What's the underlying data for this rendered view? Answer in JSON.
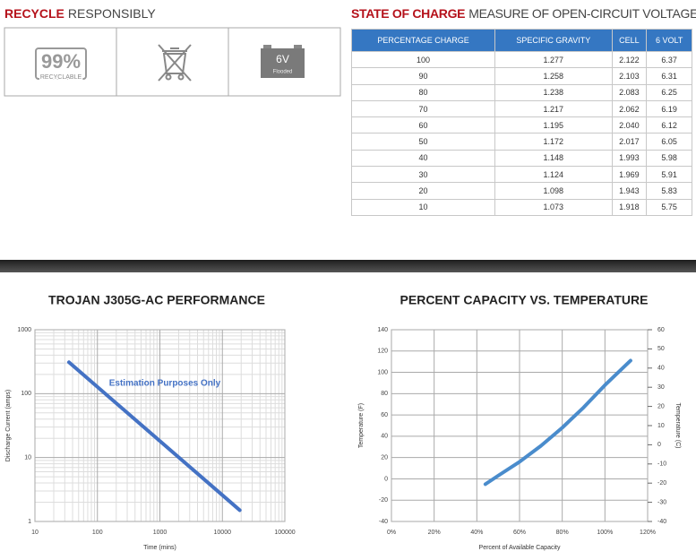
{
  "recycle": {
    "title_bold": "RECYCLE",
    "title_rest": "RESPONSIBLY",
    "badge_value": "99%",
    "badge_label": "RECYCLABLE",
    "battery_voltage": "6V",
    "battery_type": "Flooded"
  },
  "state_of_charge": {
    "title_bold": "STATE OF CHARGE",
    "title_rest": "MEASURE OF OPEN-CIRCUIT VOLTAGE",
    "header": [
      "PERCENTAGE CHARGE",
      "SPECIFIC GRAVITY",
      "CELL",
      "6 VOLT"
    ],
    "rows": [
      [
        "100",
        "1.277",
        "2.122",
        "6.37"
      ],
      [
        "90",
        "1.258",
        "2.103",
        "6.31"
      ],
      [
        "80",
        "1.238",
        "2.083",
        "6.25"
      ],
      [
        "70",
        "1.217",
        "2.062",
        "6.19"
      ],
      [
        "60",
        "1.195",
        "2.040",
        "6.12"
      ],
      [
        "50",
        "1.172",
        "2.017",
        "6.05"
      ],
      [
        "40",
        "1.148",
        "1.993",
        "5.98"
      ],
      [
        "30",
        "1.124",
        "1.969",
        "5.91"
      ],
      [
        "20",
        "1.098",
        "1.943",
        "5.83"
      ],
      [
        "10",
        "1.073",
        "1.918",
        "5.75"
      ]
    ]
  },
  "chart_data": [
    {
      "type": "line",
      "title": "TROJAN J305G-AC PERFORMANCE",
      "x_label": "Time (mins)",
      "y_label": "Discharge Current (amps)",
      "annotation": "Estimation Purposes Only",
      "log_x": true,
      "log_y": true,
      "grid": true,
      "minor_grid": true,
      "x": [
        35,
        19000
      ],
      "series": [
        {
          "color": "#4472c4",
          "values": [
            310,
            1.5
          ]
        }
      ],
      "xlim": [
        10,
        100000
      ],
      "xticks": [
        10,
        100,
        1000,
        10000,
        100000
      ],
      "ylim": [
        1,
        1000
      ],
      "yticks": [
        1,
        10,
        100,
        1000
      ]
    },
    {
      "type": "line",
      "title": "PERCENT CAPACITY VS. TEMPERATURE",
      "x_label": "Percent of Available Capacity",
      "y_label": "Temperature (F)",
      "y2_label": "Temperature (C)",
      "log_x": false,
      "log_y": false,
      "grid": true,
      "minor_grid": false,
      "x": [
        44,
        50,
        60,
        70,
        80,
        90,
        100,
        112
      ],
      "series": [
        {
          "color": "#4a8ccc",
          "values": [
            -5,
            3,
            16,
            31,
            48,
            67,
            88,
            111
          ]
        }
      ],
      "xlim": [
        0,
        120
      ],
      "xticks": [
        {
          "value": 0,
          "label": "0%"
        },
        {
          "value": 20,
          "label": "20%"
        },
        {
          "value": 40,
          "label": "40%"
        },
        {
          "value": 60,
          "label": "60%"
        },
        {
          "value": 80,
          "label": "80%"
        },
        {
          "value": 100,
          "label": "100%"
        },
        {
          "value": 120,
          "label": "120%"
        }
      ],
      "ylim": [
        -40,
        140
      ],
      "yticks": [
        -40,
        -20,
        0,
        20,
        40,
        60,
        80,
        100,
        120,
        140
      ],
      "y2lim": [
        -40,
        60
      ],
      "y2ticks": [
        -40,
        -30,
        -20,
        -10,
        0,
        10,
        20,
        30,
        40,
        50,
        60
      ]
    }
  ]
}
